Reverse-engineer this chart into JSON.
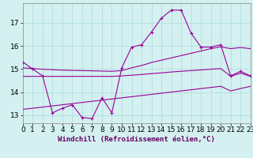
{
  "hours": [
    0,
    1,
    2,
    3,
    4,
    5,
    6,
    7,
    8,
    9,
    10,
    11,
    12,
    13,
    14,
    15,
    16,
    17,
    18,
    19,
    20,
    21,
    22,
    23
  ],
  "y_main": [
    15.3,
    15.0,
    14.7,
    13.1,
    13.3,
    13.45,
    12.9,
    12.85,
    13.75,
    13.1,
    15.05,
    15.95,
    16.05,
    16.6,
    17.2,
    17.55,
    17.55,
    16.55,
    15.95,
    15.95,
    16.05,
    14.7,
    14.9,
    14.7
  ],
  "y_upper": [
    15.05,
    15.02,
    14.99,
    14.97,
    14.95,
    14.94,
    14.93,
    14.92,
    14.91,
    14.9,
    14.93,
    15.05,
    15.15,
    15.28,
    15.38,
    15.48,
    15.58,
    15.68,
    15.78,
    15.88,
    15.96,
    15.88,
    15.93,
    15.88
  ],
  "y_middle": [
    14.68,
    14.68,
    14.68,
    14.68,
    14.68,
    14.68,
    14.68,
    14.68,
    14.68,
    14.68,
    14.7,
    14.73,
    14.76,
    14.8,
    14.83,
    14.87,
    14.9,
    14.93,
    14.96,
    14.99,
    15.02,
    14.68,
    14.82,
    14.68
  ],
  "y_lower": [
    13.25,
    13.3,
    13.35,
    13.4,
    13.45,
    13.5,
    13.55,
    13.6,
    13.65,
    13.7,
    13.75,
    13.8,
    13.85,
    13.9,
    13.95,
    14.0,
    14.05,
    14.1,
    14.15,
    14.2,
    14.25,
    14.05,
    14.15,
    14.25
  ],
  "main_color": "#990099",
  "bg_color": "#d4f0f0",
  "grid_color": "#aadddd",
  "xlim": [
    0,
    23
  ],
  "ylim": [
    12.65,
    17.85
  ],
  "yticks": [
    13,
    14,
    15,
    16,
    17
  ],
  "xticks": [
    0,
    1,
    2,
    3,
    4,
    5,
    6,
    7,
    8,
    9,
    10,
    11,
    12,
    13,
    14,
    15,
    16,
    17,
    18,
    19,
    20,
    21,
    22,
    23
  ],
  "xlabel": "Windchill (Refroidissement éolien,°C)",
  "xlabel_fontsize": 6.5,
  "tick_fontsize": 6.5
}
